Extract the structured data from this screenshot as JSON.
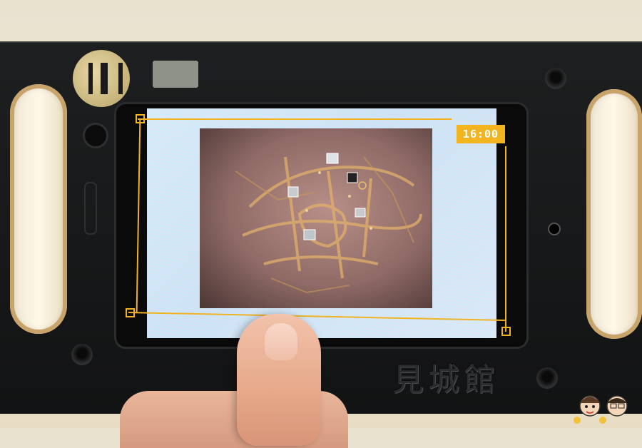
{
  "screen": {
    "time": "16:00"
  },
  "device": {
    "brand_label": "見城館"
  },
  "colors": {
    "accent_frame": "#f0b323",
    "time_badge": "#f2b51f"
  },
  "icons": [
    "map-marker-icon",
    "camera-icon",
    "screw-icon"
  ]
}
